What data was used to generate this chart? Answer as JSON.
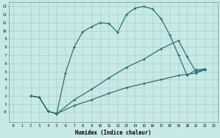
{
  "xlabel": "Humidex (Indice chaleur)",
  "bg_color": "#c8e8e8",
  "grid_color": "#a8cece",
  "line_color": "#1a7068",
  "xlim": [
    -0.5,
    23.5
  ],
  "ylim": [
    -1.2,
    13.5
  ],
  "xticks": [
    0,
    1,
    2,
    3,
    4,
    5,
    6,
    7,
    8,
    9,
    10,
    11,
    12,
    13,
    14,
    15,
    16,
    17,
    18,
    19,
    20,
    21,
    22,
    23
  ],
  "yticks": [
    0,
    1,
    2,
    3,
    4,
    5,
    6,
    7,
    8,
    9,
    10,
    11,
    12,
    13
  ],
  "ytick_labels": [
    "-0",
    "1",
    "2",
    "3",
    "4",
    "5",
    "6",
    "7",
    "8",
    "9",
    "10",
    "11",
    "12",
    "13"
  ],
  "curve1_x": [
    2,
    3,
    4,
    5,
    6,
    7,
    8,
    9,
    10,
    11,
    12,
    13,
    14,
    15,
    16,
    17,
    18,
    19,
    20,
    21,
    22
  ],
  "curve1_y": [
    2,
    1.8,
    0.1,
    -0.2,
    4.8,
    8.0,
    9.9,
    10.5,
    11.0,
    10.9,
    9.8,
    12.0,
    12.8,
    13.0,
    12.7,
    11.5,
    9.5,
    7.0,
    4.5,
    5.2,
    5.3
  ],
  "curve2_x": [
    2,
    3,
    4,
    5,
    7,
    9,
    11,
    13,
    15,
    17,
    19,
    20,
    21,
    22
  ],
  "curve2_y": [
    2,
    1.8,
    0.1,
    -0.2,
    1.5,
    2.8,
    4.2,
    5.5,
    6.5,
    7.8,
    8.8,
    6.8,
    5.0,
    5.2
  ],
  "curve3_x": [
    2,
    3,
    4,
    5,
    7,
    9,
    11,
    13,
    15,
    17,
    19,
    21,
    22
  ],
  "curve3_y": [
    2,
    1.8,
    0.1,
    -0.2,
    0.8,
    1.5,
    2.3,
    3.0,
    3.5,
    4.0,
    4.5,
    4.8,
    5.2
  ]
}
